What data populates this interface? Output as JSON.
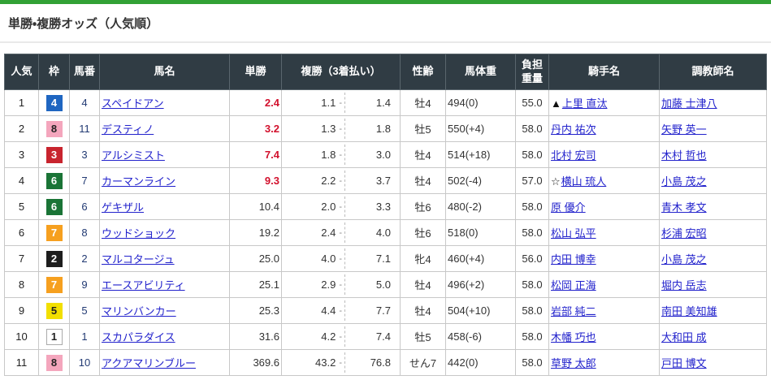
{
  "page": {
    "title": "単勝・複勝オッズ（人気順）"
  },
  "colors": {
    "top_bar_green": "#32a135",
    "header_bg": "#303c44",
    "highlight_red": "#e60012",
    "odds_red": "#d2112d",
    "link_blue": "#2222cc",
    "horse_number_navy": "#223a73",
    "rank_col_bg": "#ededed",
    "frame_colors": {
      "1": "#ffffff",
      "2": "#1d1d1d",
      "3": "#c8242e",
      "4": "#1f66c1",
      "5": "#f2df00",
      "6": "#1a7436",
      "7": "#f6a01f",
      "8": "#f4a6bd"
    }
  },
  "table": {
    "headers": {
      "rank": "人気",
      "frame": "枠",
      "number": "馬番",
      "name": "馬名",
      "win": "単勝",
      "place": "複勝（3着払い）",
      "sex_age": "性齢",
      "weight": "馬体重",
      "impost_line1": "負担",
      "impost_line2": "重量",
      "jockey": "騎手名",
      "trainer": "調教師名"
    },
    "place_separator": "-",
    "rows": [
      {
        "rank": "1",
        "frame": "4",
        "number": "4",
        "name": "スペイドアン",
        "win": "2.4",
        "win_red": true,
        "place_low": "1.1",
        "place_high": "1.4",
        "sex_age": "牡4",
        "weight": "494(0)",
        "impost": "55.0",
        "jockey_mark": "▲",
        "jockey": "上里 直汰",
        "trainer": "加藤 士津八",
        "hl": "both"
      },
      {
        "rank": "2",
        "frame": "8",
        "number": "11",
        "name": "デスティノ",
        "win": "3.2",
        "win_red": true,
        "place_low": "1.3",
        "place_high": "1.8",
        "sex_age": "牡5",
        "weight": "550(+4)",
        "impost": "58.0",
        "jockey_mark": "",
        "jockey": "丹内 祐次",
        "trainer": "矢野 英一",
        "hl": ""
      },
      {
        "rank": "3",
        "frame": "3",
        "number": "3",
        "name": "アルシミスト",
        "win": "7.4",
        "win_red": true,
        "place_low": "1.8",
        "place_high": "3.0",
        "sex_age": "牡4",
        "weight": "514(+18)",
        "impost": "58.0",
        "jockey_mark": "",
        "jockey": "北村 宏司",
        "trainer": "木村 哲也",
        "hl": "start"
      },
      {
        "rank": "4",
        "frame": "6",
        "number": "7",
        "name": "カーマンライン",
        "win": "9.3",
        "win_red": true,
        "place_low": "2.2",
        "place_high": "3.7",
        "sex_age": "牡4",
        "weight": "502(-4)",
        "impost": "57.0",
        "jockey_mark": "☆",
        "jockey": "横山 琉人",
        "trainer": "小島 茂之",
        "hl": "end"
      },
      {
        "rank": "5",
        "frame": "6",
        "number": "6",
        "name": "ゲキザル",
        "win": "10.4",
        "win_red": false,
        "place_low": "2.0",
        "place_high": "3.3",
        "sex_age": "牡6",
        "weight": "480(-2)",
        "impost": "58.0",
        "jockey_mark": "",
        "jockey": "原 優介",
        "trainer": "青木 孝文",
        "hl": ""
      },
      {
        "rank": "6",
        "frame": "7",
        "number": "8",
        "name": "ウッドショック",
        "win": "19.2",
        "win_red": false,
        "place_low": "2.4",
        "place_high": "4.0",
        "sex_age": "牡6",
        "weight": "518(0)",
        "impost": "58.0",
        "jockey_mark": "",
        "jockey": "松山 弘平",
        "trainer": "杉浦 宏昭",
        "hl": ""
      },
      {
        "rank": "7",
        "frame": "2",
        "number": "2",
        "name": "マルコタージュ",
        "win": "25.0",
        "win_red": false,
        "place_low": "4.0",
        "place_high": "7.1",
        "sex_age": "牝4",
        "weight": "460(+4)",
        "impost": "56.0",
        "jockey_mark": "",
        "jockey": "内田 博幸",
        "trainer": "小島 茂之",
        "hl": ""
      },
      {
        "rank": "8",
        "frame": "7",
        "number": "9",
        "name": "エースアビリティ",
        "win": "25.1",
        "win_red": false,
        "place_low": "2.9",
        "place_high": "5.0",
        "sex_age": "牡4",
        "weight": "496(+2)",
        "impost": "58.0",
        "jockey_mark": "",
        "jockey": "松岡 正海",
        "trainer": "堀内 岳志",
        "hl": "both"
      },
      {
        "rank": "9",
        "frame": "5",
        "number": "5",
        "name": "マリンバンカー",
        "win": "25.3",
        "win_red": false,
        "place_low": "4.4",
        "place_high": "7.7",
        "sex_age": "牡4",
        "weight": "504(+10)",
        "impost": "58.0",
        "jockey_mark": "",
        "jockey": "岩部 純二",
        "trainer": "南田 美知雄",
        "hl": ""
      },
      {
        "rank": "10",
        "frame": "1",
        "number": "1",
        "name": "スカパラダイス",
        "win": "31.6",
        "win_red": false,
        "place_low": "4.2",
        "place_high": "7.4",
        "sex_age": "牡5",
        "weight": "458(-6)",
        "impost": "58.0",
        "jockey_mark": "",
        "jockey": "木幡 巧也",
        "trainer": "大和田 成",
        "hl": ""
      },
      {
        "rank": "11",
        "frame": "8",
        "number": "10",
        "name": "アクアマリンブルー",
        "win": "369.6",
        "win_red": false,
        "place_low": "43.2",
        "place_high": "76.8",
        "sex_age": "せん7",
        "weight": "442(0)",
        "impost": "58.0",
        "jockey_mark": "",
        "jockey": "草野 太郎",
        "trainer": "戸田 博文",
        "hl": "both"
      }
    ]
  }
}
